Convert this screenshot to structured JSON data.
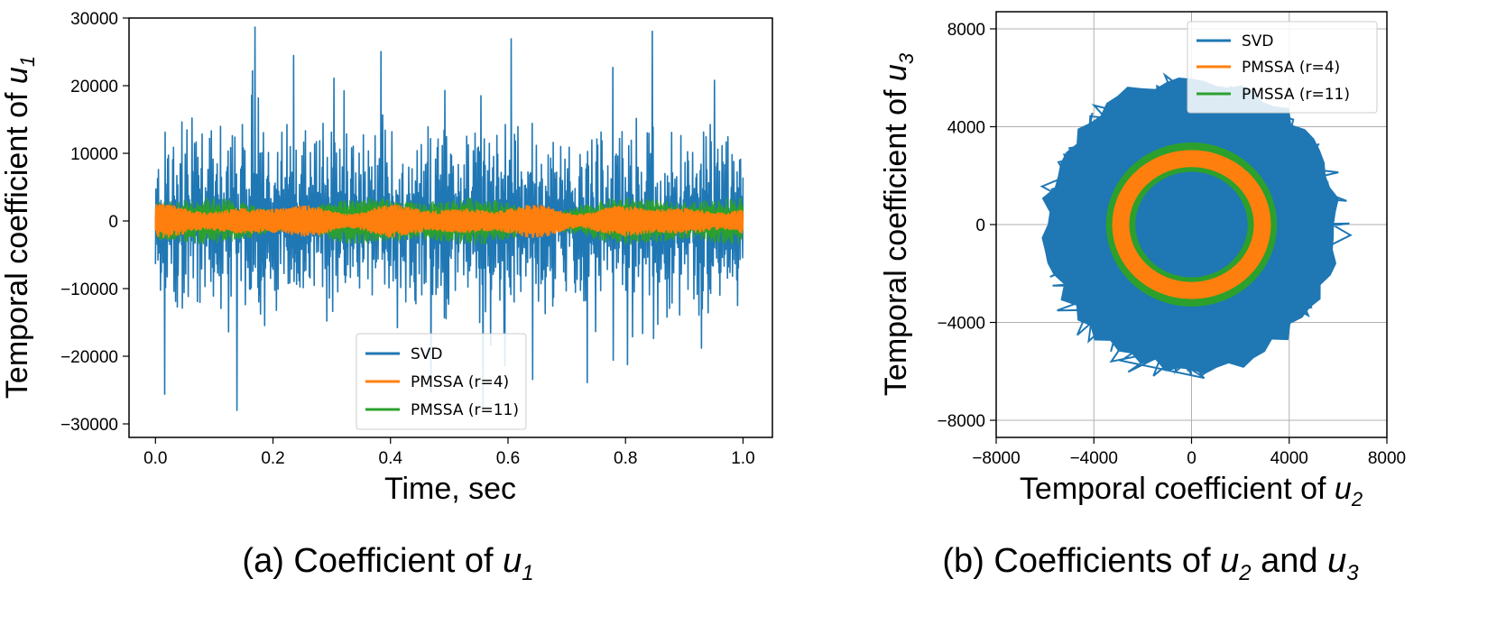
{
  "chart_data": [
    {
      "type": "line",
      "caption": {
        "prefix": "(a) Coefficient of ",
        "var": "u",
        "sub": "1"
      },
      "xlabel": "Time, sec",
      "ylabel": {
        "prefix": "Temporal coefficient of ",
        "var": "u",
        "sub": "1"
      },
      "xlim": [
        -0.045,
        1.05
      ],
      "ylim": [
        -32000,
        30000
      ],
      "xticks": [
        0.0,
        0.2,
        0.4,
        0.6,
        0.8,
        1.0
      ],
      "xtick_labels": [
        "0.0",
        "0.2",
        "0.4",
        "0.6",
        "0.8",
        "1.0"
      ],
      "yticks": [
        -30000,
        -20000,
        -10000,
        0,
        10000,
        20000,
        30000
      ],
      "ytick_labels": [
        "−30000",
        "−20000",
        "−10000",
        "0",
        "10000",
        "20000",
        "30000"
      ],
      "grid": false,
      "legend_position": "lower-center",
      "series": [
        {
          "name": "SVD",
          "color": "#1f77b4",
          "x_range": [
            0,
            1
          ],
          "band_abs": 14000,
          "peak_abs": 29000,
          "baseline": 0
        },
        {
          "name": "PMSSA (r=4)",
          "color": "#ff7f0e",
          "x_range": [
            0,
            1
          ],
          "band_abs": 2200,
          "baseline": 0
        },
        {
          "name": "PMSSA (r=11)",
          "color": "#2ca02c",
          "x_range": [
            0,
            1
          ],
          "band_abs": 5000,
          "baseline": 0
        }
      ]
    },
    {
      "type": "scatter",
      "caption": {
        "prefix": "(b) Coefficients of ",
        "var1": "u",
        "sub1": "2",
        "mid": " and ",
        "var2": "u",
        "sub2": "3"
      },
      "xlabel": {
        "prefix": "Temporal coefficient of ",
        "var": "u",
        "sub": "2"
      },
      "ylabel": {
        "prefix": "Temporal coefficient of ",
        "var": "u",
        "sub": "3"
      },
      "xlim": [
        -8000,
        8000
      ],
      "ylim": [
        -8700,
        8700
      ],
      "xticks": [
        -8000,
        -4000,
        0,
        4000,
        8000
      ],
      "xtick_labels": [
        "−8000",
        "−4000",
        "0",
        "4000",
        "8000"
      ],
      "yticks": [
        -8000,
        -4000,
        0,
        4000,
        8000
      ],
      "ytick_labels": [
        "−8000",
        "−4000",
        "0",
        "4000",
        "8000"
      ],
      "grid": true,
      "legend_position": "top-right",
      "series": [
        {
          "name": "SVD",
          "color": "#1f77b4",
          "cloud_radius": 6500
        },
        {
          "name": "PMSSA (r=4)",
          "color": "#ff7f0e",
          "ring_radius": 2900,
          "ring_width": 700
        },
        {
          "name": "PMSSA (r=11)",
          "color": "#2ca02c",
          "ring_radius": 2900,
          "ring_width": 1200
        }
      ]
    }
  ]
}
